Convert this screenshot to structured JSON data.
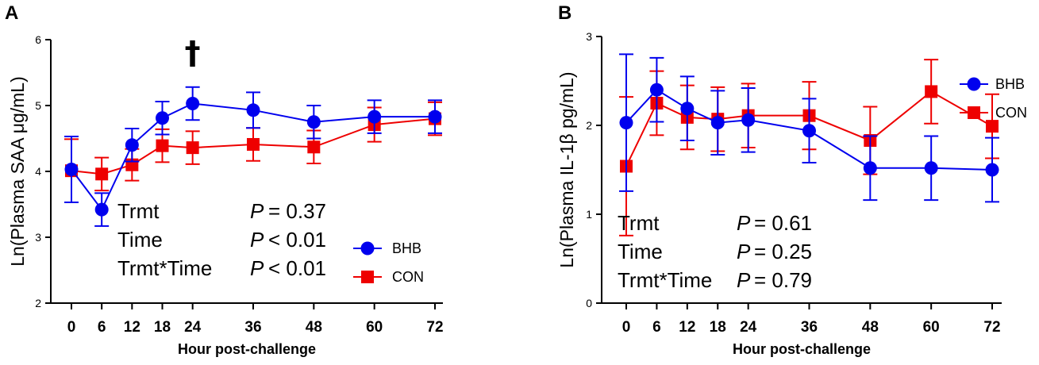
{
  "chart_data": [
    {
      "panel": "A",
      "type": "line",
      "categories": [
        "0",
        "6",
        "12",
        "18",
        "24",
        "36",
        "48",
        "60",
        "72"
      ],
      "x": [
        0,
        6,
        12,
        18,
        24,
        36,
        48,
        60,
        72
      ],
      "xlabel": "Hour post-challenge",
      "ylabel": "Ln(Plasma SAA μg/mL)",
      "ylim": [
        2,
        6
      ],
      "yticks": [
        2,
        3,
        4,
        5,
        6
      ],
      "series": [
        {
          "name": "BHB",
          "color": "#0000ee",
          "marker": "circle",
          "values": [
            4.03,
            3.42,
            4.4,
            4.81,
            5.03,
            4.93,
            4.75,
            4.83,
            4.83
          ],
          "error": [
            0.5,
            0.25,
            0.25,
            0.25,
            0.25,
            0.27,
            0.25,
            0.25,
            0.25
          ]
        },
        {
          "name": "CON",
          "color": "#ee0000",
          "marker": "square",
          "values": [
            4.01,
            3.96,
            4.1,
            4.39,
            4.36,
            4.41,
            4.37,
            4.71,
            4.8
          ],
          "error": [
            0.48,
            0.25,
            0.24,
            0.25,
            0.25,
            0.25,
            0.25,
            0.26,
            0.25
          ]
        }
      ],
      "annotation": {
        "text": "†",
        "x": 24
      },
      "stats": [
        {
          "label": "Trmt",
          "p": "P",
          "value": "= 0.37"
        },
        {
          "label": "Time",
          "p": "P",
          "value": "< 0.01"
        },
        {
          "label": "Trmt*Time",
          "p": "P",
          "value": "< 0.01"
        }
      ],
      "legend": [
        "BHB",
        "CON"
      ]
    },
    {
      "panel": "B",
      "type": "line",
      "categories": [
        "0",
        "6",
        "12",
        "18",
        "24",
        "36",
        "48",
        "60",
        "72"
      ],
      "x": [
        0,
        6,
        12,
        18,
        24,
        36,
        48,
        60,
        72
      ],
      "xlabel": "Hour post-challenge",
      "ylabel": "Ln(Plasma IL-1β pg/mL)",
      "ylim": [
        0,
        3
      ],
      "yticks": [
        0,
        1,
        2,
        3
      ],
      "series": [
        {
          "name": "BHB",
          "color": "#0000ee",
          "marker": "circle",
          "values": [
            2.03,
            2.4,
            2.19,
            2.03,
            2.06,
            1.94,
            1.52,
            1.52,
            1.5
          ],
          "error": [
            0.77,
            0.36,
            0.36,
            0.36,
            0.36,
            0.36,
            0.36,
            0.36,
            0.36
          ]
        },
        {
          "name": "CON",
          "color": "#ee0000",
          "marker": "square",
          "values": [
            1.54,
            2.25,
            2.09,
            2.07,
            2.11,
            2.11,
            1.83,
            2.38,
            1.99
          ],
          "error": [
            0.78,
            0.36,
            0.36,
            0.36,
            0.36,
            0.38,
            0.38,
            0.36,
            0.36
          ]
        }
      ],
      "stats": [
        {
          "label": "Trmt",
          "p": "P",
          "value": "= 0.61"
        },
        {
          "label": "Time",
          "p": "P",
          "value": "= 0.25"
        },
        {
          "label": "Trmt*Time",
          "p": "P",
          "value": "= 0.79"
        }
      ],
      "legend": [
        "BHB",
        "CON"
      ]
    }
  ]
}
